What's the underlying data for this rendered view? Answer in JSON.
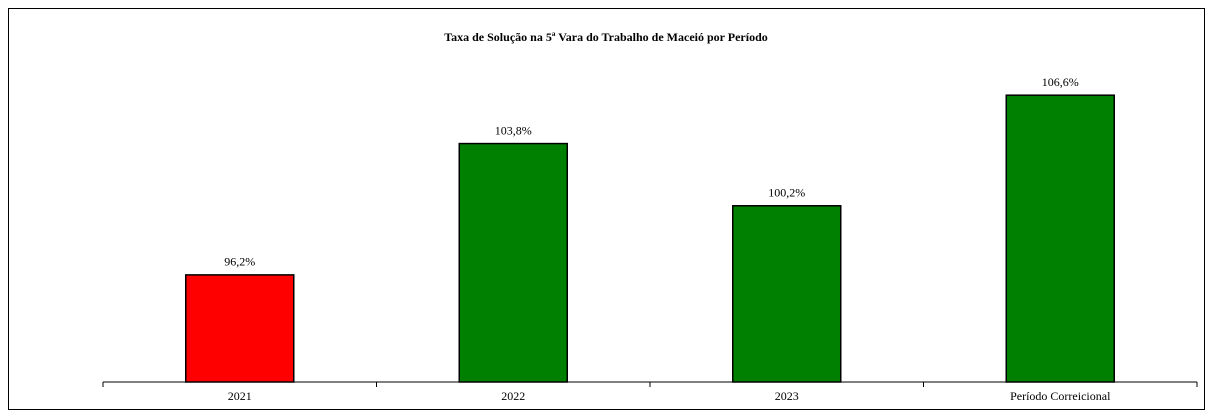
{
  "chart_data": {
    "type": "bar",
    "title": "Taxa de Solução na 5ª Vara do Trabalho de Maceió por Período",
    "categories": [
      "2021",
      "2022",
      "2023",
      "Período Correicional"
    ],
    "values": [
      96.2,
      103.8,
      100.2,
      106.6
    ],
    "value_labels": [
      "96,2%",
      "103,8%",
      "100,2%",
      "106,6%"
    ],
    "colors": [
      "#ff0000",
      "#008000",
      "#008000",
      "#008000"
    ],
    "ylim": [
      90,
      108
    ]
  }
}
